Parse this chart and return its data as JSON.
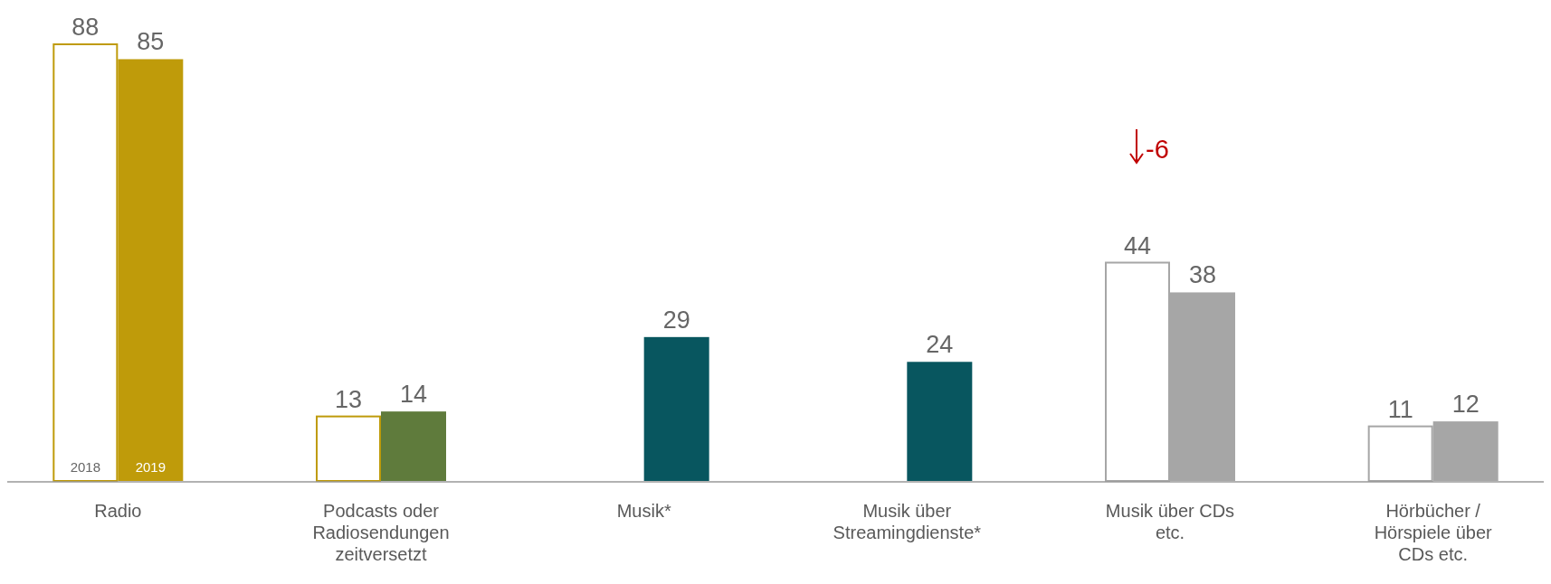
{
  "chart_data": {
    "type": "bar",
    "categories": [
      "Radio",
      "Podcasts oder Radiosendungen zeitversetzt",
      "Musik*",
      "Musik über Streamingdienste*",
      "Musik über CDs etc.",
      "Hörbücher / Hörspiele über CDs etc."
    ],
    "series": [
      {
        "name": "2018",
        "colors": [
          "#bf9b0a",
          "#bf9b0a",
          null,
          null,
          "#a6a6a6",
          "#a6a6a6"
        ],
        "values": [
          88,
          13,
          null,
          null,
          44,
          11
        ]
      },
      {
        "name": "2019",
        "colors": [
          "#bf9b0a",
          "#5f7b3c",
          "#08565f",
          "#08565f",
          "#a6a6a6",
          "#a6a6a6"
        ],
        "values": [
          85,
          14,
          29,
          24,
          38,
          12
        ]
      }
    ],
    "data_labels": true,
    "annotations": [
      "-6"
    ]
  }
}
